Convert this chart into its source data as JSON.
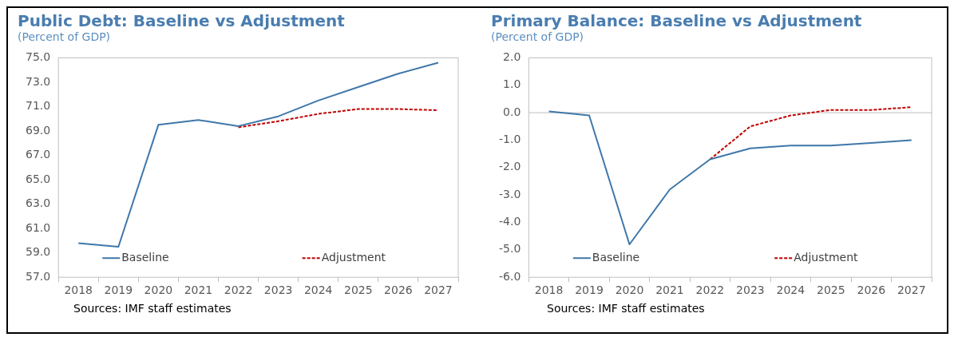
{
  "chart_data": [
    {
      "type": "line",
      "title": "Public Debt: Baseline vs Adjustment",
      "subtitle": "(Percent of GDP)",
      "categories": [
        "2018",
        "2019",
        "2020",
        "2021",
        "2022",
        "2023",
        "2024",
        "2025",
        "2026",
        "2027"
      ],
      "series": [
        {
          "name": "Baseline",
          "color": "#3f77aa",
          "line_style": "solid",
          "values": [
            59.8,
            59.5,
            69.5,
            69.9,
            69.4,
            70.2,
            71.5,
            72.6,
            73.7,
            74.6
          ]
        },
        {
          "name": "Adjustment",
          "color": "#c00000",
          "line_style": "dashed",
          "values": [
            null,
            null,
            null,
            null,
            69.3,
            69.8,
            70.4,
            70.8,
            70.8,
            70.7
          ]
        }
      ],
      "ylim": [
        57,
        75
      ],
      "yticks": [
        {
          "value": 57,
          "label": "57.0"
        },
        {
          "value": 59,
          "label": "59.0"
        },
        {
          "value": 61,
          "label": "61.0"
        },
        {
          "value": 63,
          "label": "63.0"
        },
        {
          "value": 65,
          "label": "65.0"
        },
        {
          "value": 67,
          "label": "67.0"
        },
        {
          "value": 69,
          "label": "69.0"
        },
        {
          "value": 71,
          "label": "71.0"
        },
        {
          "value": 73,
          "label": "73.0"
        },
        {
          "value": 75,
          "label": "75.0"
        }
      ],
      "grid": false,
      "legend": "bottom",
      "marker": "none",
      "annotations": [
        "Sources: IMF staff estimates"
      ]
    },
    {
      "type": "line",
      "title": "Primary Balance: Baseline vs Adjustment",
      "subtitle": "(Percent of GDP)",
      "categories": [
        "2018",
        "2019",
        "2020",
        "2021",
        "2022",
        "2023",
        "2024",
        "2025",
        "2026",
        "2027"
      ],
      "series": [
        {
          "name": "Baseline",
          "color": "#3f77aa",
          "line_style": "solid",
          "values": [
            0.05,
            -0.1,
            -4.8,
            -2.8,
            -1.7,
            -1.3,
            -1.2,
            -1.2,
            -1.1,
            -1.0
          ]
        },
        {
          "name": "Adjustment",
          "color": "#c00000",
          "line_style": "dashed",
          "values": [
            null,
            null,
            null,
            null,
            -1.7,
            -0.5,
            -0.1,
            0.1,
            0.1,
            0.2
          ]
        }
      ],
      "ylim": [
        -6,
        2
      ],
      "yticks": [
        {
          "value": -6,
          "label": "-6.0"
        },
        {
          "value": -5,
          "label": "-5.0"
        },
        {
          "value": -4,
          "label": "-4.0"
        },
        {
          "value": -3,
          "label": "-3.0"
        },
        {
          "value": -2,
          "label": "-2.0"
        },
        {
          "value": -1,
          "label": "-1.0"
        },
        {
          "value": 0,
          "label": "0.0"
        },
        {
          "value": 1,
          "label": "1.0"
        },
        {
          "value": 2,
          "label": "2.0"
        }
      ],
      "ref_lines": [
        {
          "axis": "y",
          "value": 0,
          "color": "#bfbfbf"
        }
      ],
      "grid": false,
      "legend": "bottom",
      "marker": "none",
      "annotations": [
        "Sources: IMF staff estimates"
      ]
    }
  ]
}
